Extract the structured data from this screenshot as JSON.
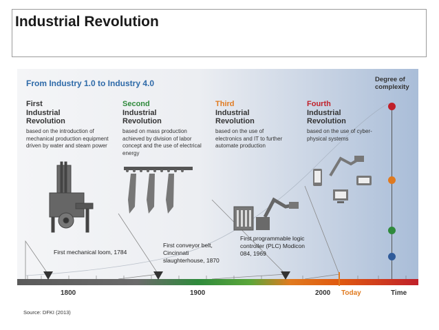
{
  "title": "Industrial Revolution",
  "subtitle": "From Industry 1.0 to Industry 4.0",
  "degree_label": "Degree of complexity",
  "revolutions": [
    {
      "num": "First",
      "rest": "Industrial Revolution",
      "color": "#333333",
      "desc": "based on the introduction of mechanical production equipment driven by water and steam power"
    },
    {
      "num": "Second",
      "rest": "Industrial Revolution",
      "color": "#2f8a3c",
      "desc": "based on mass production achieved by division of labor concept and the use of electrical energy"
    },
    {
      "num": "Third",
      "rest": "Industrial Revolution",
      "color": "#e07a1f",
      "desc": "based on the use of electronics and IT to further automate production"
    },
    {
      "num": "Fourth",
      "rest": "Industrial Revolution",
      "color": "#c0202a",
      "desc": "based on the use of cyber-physical systems"
    }
  ],
  "captions": {
    "loom": "First mechanical loom, 1784",
    "conveyor": "First conveyor belt, Cincinnati slaughterhouse, 1870",
    "plc": "First programmable logic controller (PLC) Modicon 084, 1969"
  },
  "axis": {
    "y1800": "1800",
    "y1900": "1900",
    "y2000": "2000",
    "today": "Today",
    "time": "Time"
  },
  "source": "Source: DFKI (2013)",
  "dot_colors": {
    "red": "#c0202a",
    "orange": "#e07a1f",
    "green": "#2f8a3c",
    "blue": "#2f5b9a"
  }
}
